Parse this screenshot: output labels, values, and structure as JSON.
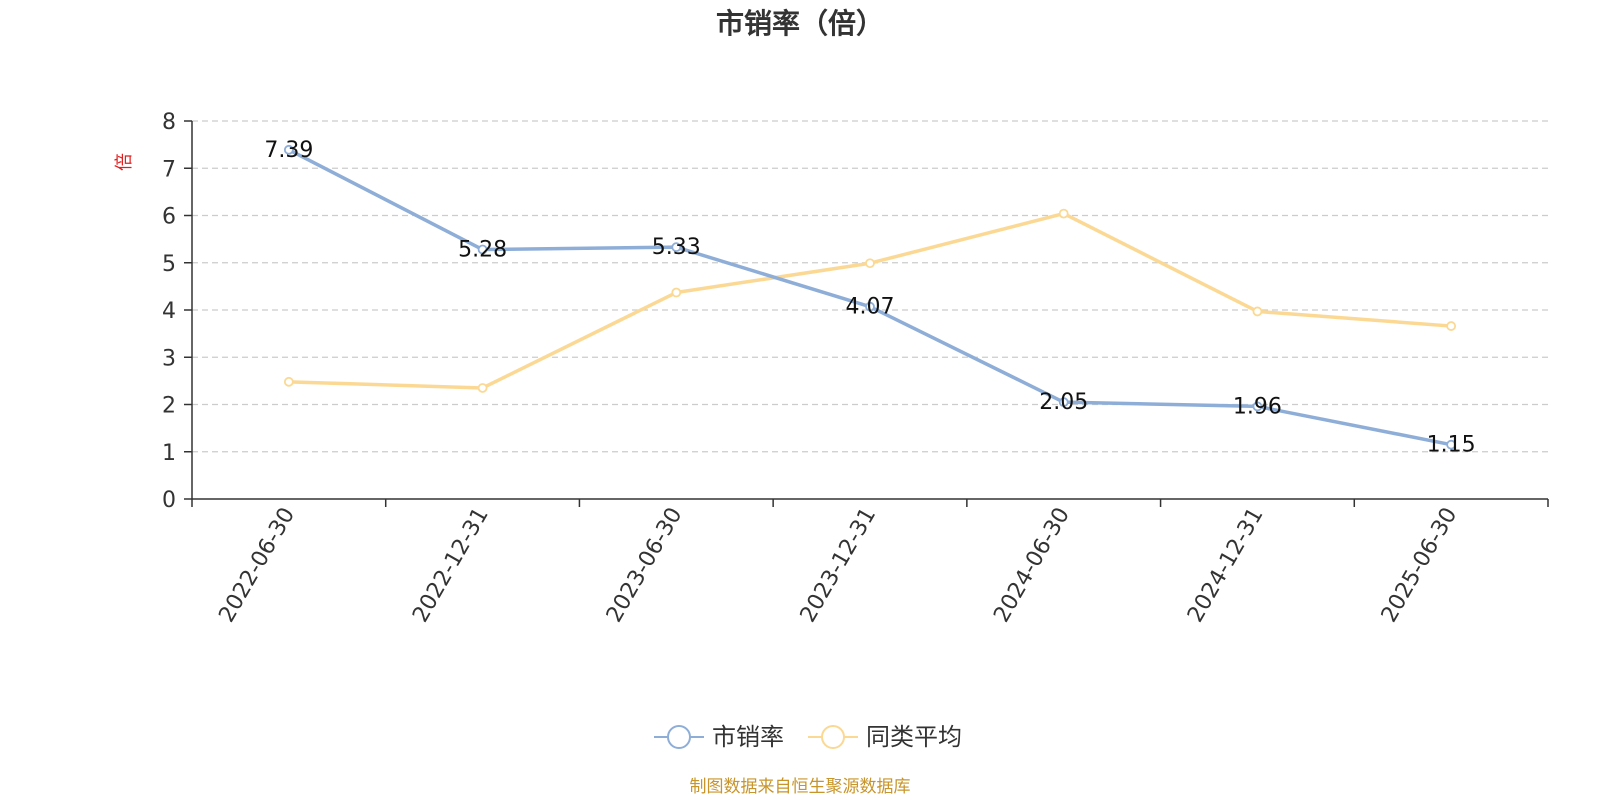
{
  "chart_data": {
    "type": "line",
    "title": "市销率（倍）",
    "ylabel": "倍",
    "xlabel": "",
    "categories": [
      "2022-06-30",
      "2022-12-31",
      "2023-06-30",
      "2023-12-31",
      "2024-06-30",
      "2024-12-31",
      "2025-06-30"
    ],
    "ylim": [
      0,
      8
    ],
    "yticks": [
      "0",
      "1",
      "2",
      "3",
      "4",
      "5",
      "6",
      "7",
      "8"
    ],
    "grid": true,
    "legend_position": "bottom-center",
    "series": [
      {
        "name": "市销率",
        "color": "#8eaed8",
        "values": [
          7.39,
          5.28,
          5.33,
          4.07,
          2.05,
          1.96,
          1.15
        ],
        "labels": [
          "7.39",
          "5.28",
          "5.33",
          "4.07",
          "2.05",
          "1.96",
          "1.15"
        ]
      },
      {
        "name": "同类平均",
        "color": "#fbd994",
        "values": [
          2.48,
          2.35,
          4.37,
          4.99,
          6.04,
          3.97,
          3.66
        ]
      }
    ]
  },
  "footer": {
    "source": "制图数据来自恒生聚源数据库",
    "source_color": "#c8952a"
  },
  "colors": {
    "axis": "#333333",
    "grid": "#cccccc",
    "ylabel": "#e02020"
  }
}
